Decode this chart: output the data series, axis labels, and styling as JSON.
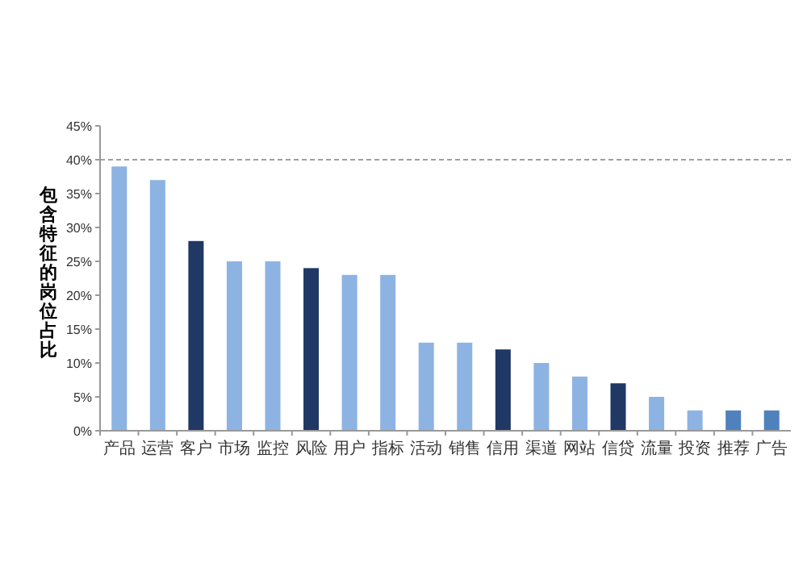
{
  "chart_data": {
    "type": "bar",
    "ylabel": "包含特征的岗位占比",
    "categories": [
      "产品",
      "运营",
      "客户",
      "市场",
      "监控",
      "风险",
      "用户",
      "指标",
      "活动",
      "销售",
      "信用",
      "渠道",
      "网站",
      "信贷",
      "流量",
      "投资",
      "推荐",
      "广告"
    ],
    "values": [
      39,
      37,
      28,
      25,
      25,
      24,
      23,
      23,
      13,
      13,
      12,
      10,
      8,
      7,
      5,
      3,
      3,
      3
    ],
    "colors": [
      "#8db3e2",
      "#8db3e2",
      "#1f3864",
      "#8db3e2",
      "#8db3e2",
      "#1f3864",
      "#8db3e2",
      "#8db3e2",
      "#8db3e2",
      "#8db3e2",
      "#1f3864",
      "#8db3e2",
      "#8db3e2",
      "#1f3864",
      "#8db3e2",
      "#8db3e2",
      "#4f81bd",
      "#4f81bd"
    ],
    "ylim": [
      0,
      45
    ],
    "yticks": [
      {
        "value": 0,
        "label": "0%"
      },
      {
        "value": 5,
        "label": "5%"
      },
      {
        "value": 10,
        "label": "10%"
      },
      {
        "value": 15,
        "label": "15%"
      },
      {
        "value": 20,
        "label": "20%"
      },
      {
        "value": 25,
        "label": "25%"
      },
      {
        "value": 30,
        "label": "30%"
      },
      {
        "value": 35,
        "label": "35%"
      },
      {
        "value": 40,
        "label": "40%"
      },
      {
        "value": 45,
        "label": "45%"
      }
    ],
    "ref_lines": [
      {
        "axis": "y",
        "value": 40,
        "color": "#808080",
        "line_style": "dashed"
      }
    ],
    "grid": false
  }
}
